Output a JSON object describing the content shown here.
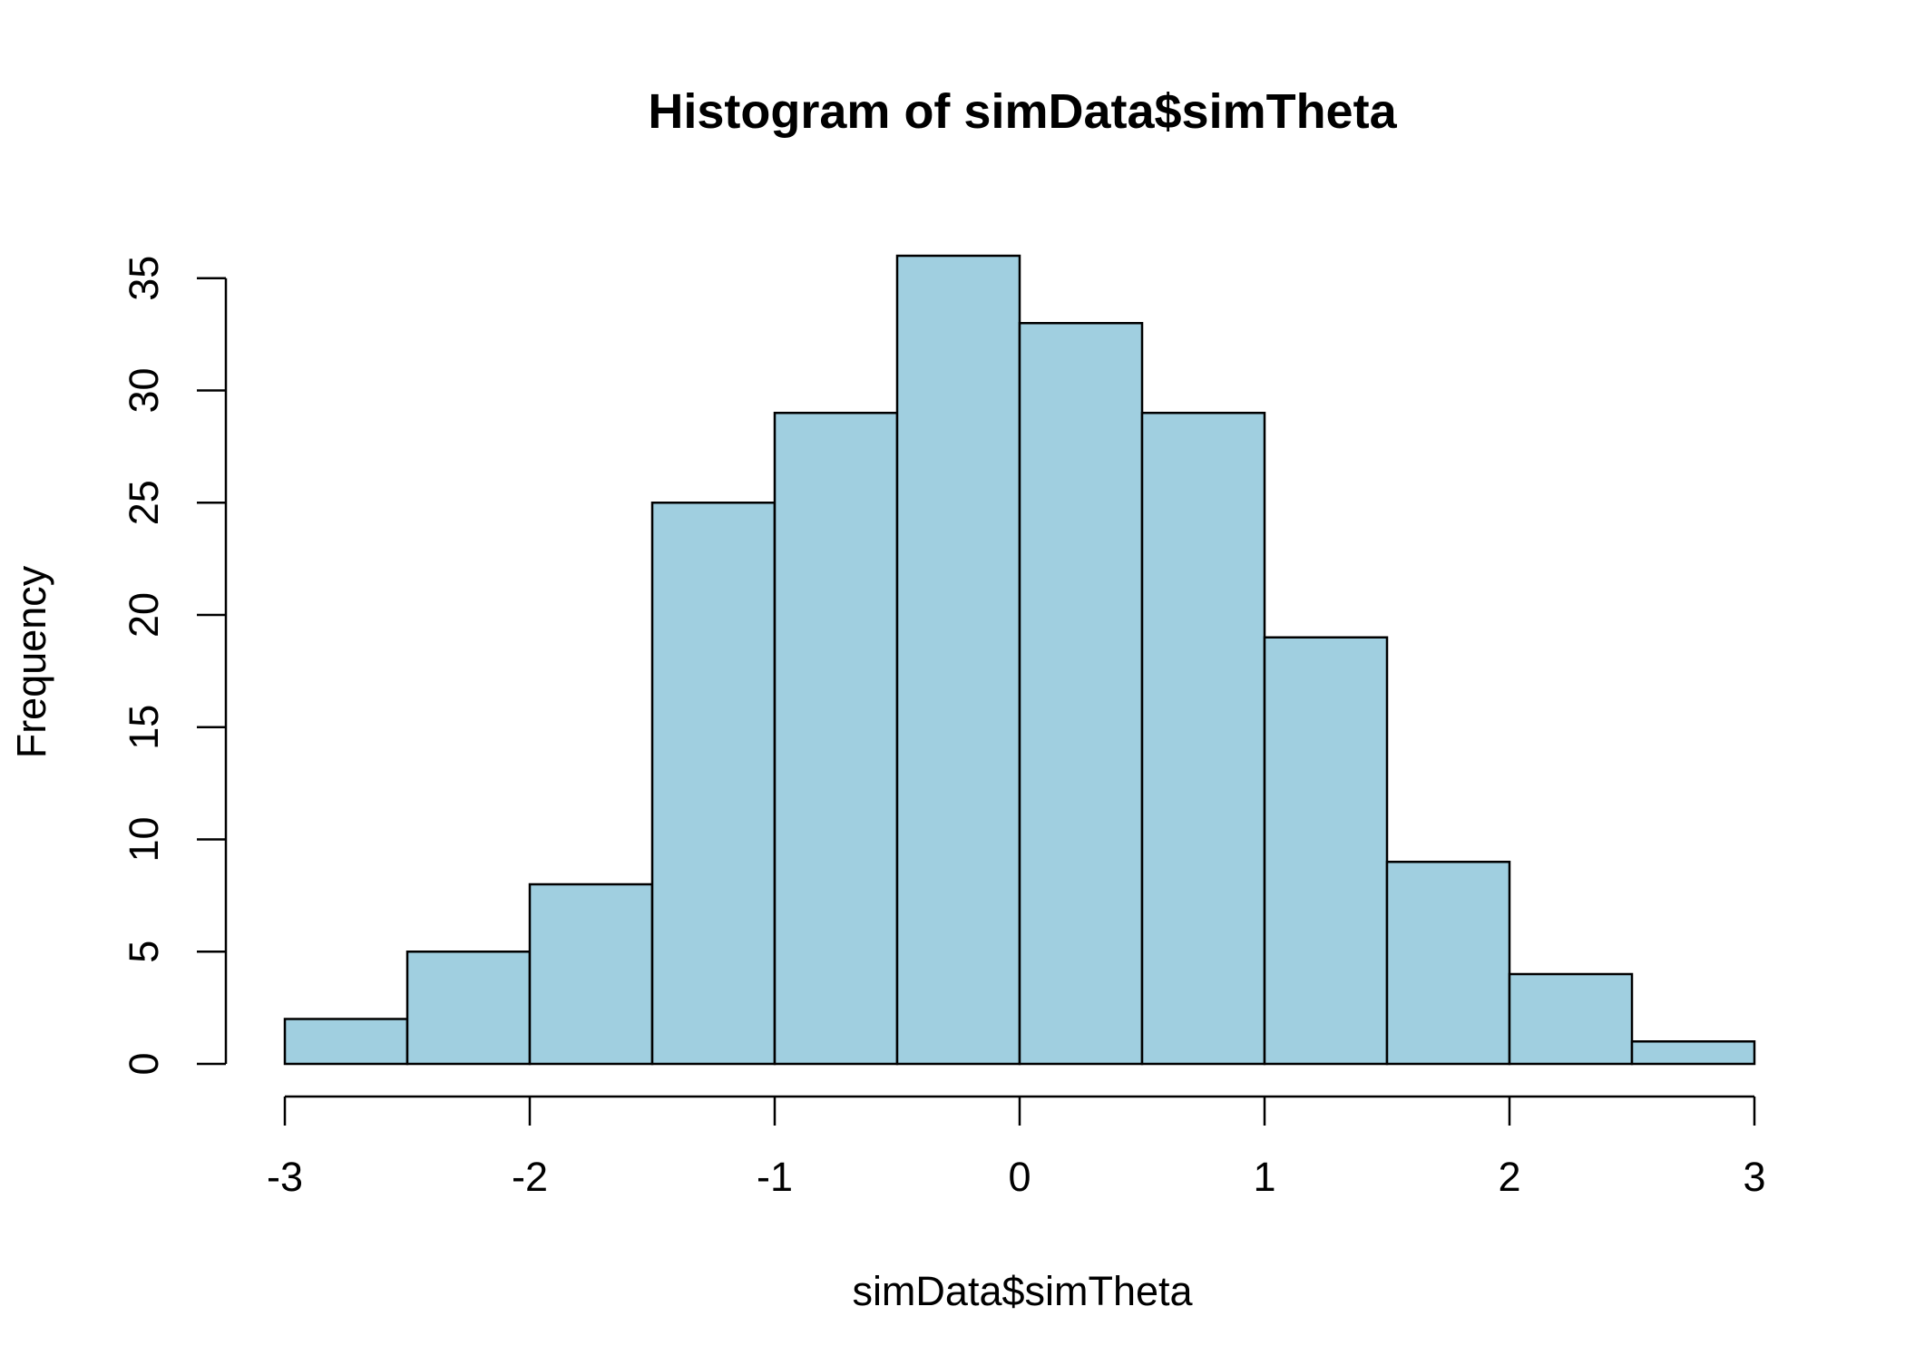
{
  "chart_data": {
    "type": "bar",
    "title": "Histogram of simData$simTheta",
    "xlabel": "simData$simTheta",
    "ylabel": "Frequency",
    "bins": [
      {
        "start": -3.0,
        "end": -2.5,
        "count": 2
      },
      {
        "start": -2.5,
        "end": -2.0,
        "count": 5
      },
      {
        "start": -2.0,
        "end": -1.5,
        "count": 8
      },
      {
        "start": -1.5,
        "end": -1.0,
        "count": 25
      },
      {
        "start": -1.0,
        "end": -0.5,
        "count": 29
      },
      {
        "start": -0.5,
        "end": 0.0,
        "count": 36
      },
      {
        "start": 0.0,
        "end": 0.5,
        "count": 33
      },
      {
        "start": 0.5,
        "end": 1.0,
        "count": 29
      },
      {
        "start": 1.0,
        "end": 1.5,
        "count": 19
      },
      {
        "start": 1.5,
        "end": 2.0,
        "count": 9
      },
      {
        "start": 2.0,
        "end": 2.5,
        "count": 4
      },
      {
        "start": 2.5,
        "end": 3.0,
        "count": 1
      }
    ],
    "xlim": [
      -3,
      3
    ],
    "ylim": [
      0,
      36
    ],
    "x_ticks": [
      "-3",
      "-2",
      "-1",
      "0",
      "1",
      "2",
      "3"
    ],
    "y_ticks": [
      "0",
      "5",
      "10",
      "15",
      "20",
      "25",
      "30",
      "35"
    ],
    "grid": false,
    "bar_color": "#a0cfe0",
    "bar_border_color": "#000000",
    "axis_color": "#000000"
  }
}
